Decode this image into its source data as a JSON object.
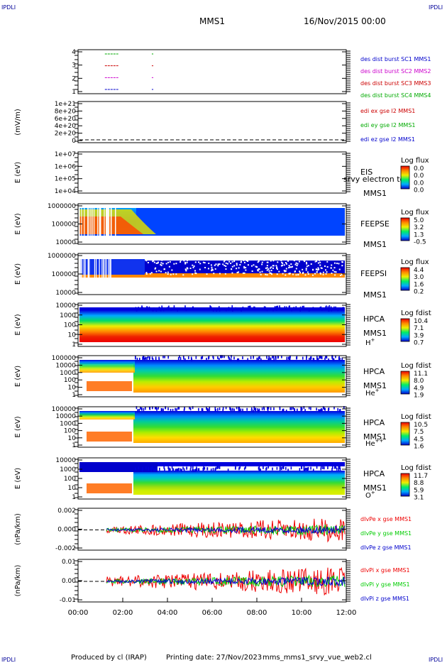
{
  "header": {
    "corner_label": "IPDLI",
    "spacecraft": "MMS1",
    "date": "16/Nov/2015 00:00"
  },
  "footer": {
    "produced_by": "Produced by cl (IRAP)",
    "printing_date": "Printing date: 27/Nov/2023",
    "filename": "mms_mms1_srvy_vue_web2.cl"
  },
  "chart_data": [
    {
      "id": "burst",
      "type": "line",
      "ylabel": "",
      "ytick_labels": [
        "4",
        "3",
        "2",
        "1"
      ],
      "series": [
        {
          "name": "des dist burst SC1 MMS1",
          "color": "#0000cc",
          "level": 1,
          "segments": [
            [
              "01:12",
              "01:48"
            ],
            [
              "03:18",
              "03:22"
            ]
          ]
        },
        {
          "name": "des dist burst SC2 MMS2",
          "color": "#cc00cc",
          "level": 2,
          "segments": [
            [
              "01:12",
              "01:48"
            ],
            [
              "03:18",
              "03:22"
            ]
          ]
        },
        {
          "name": "des dist burst SC3 MMS3",
          "color": "#cc0000",
          "level": 3,
          "segments": [
            [
              "01:12",
              "01:48"
            ],
            [
              "03:18",
              "03:22"
            ]
          ]
        },
        {
          "name": "des dist burst SC4 MMS4",
          "color": "#00aa00",
          "level": 4,
          "segments": [
            [
              "01:12",
              "01:48"
            ],
            [
              "03:18",
              "03:22"
            ]
          ]
        }
      ]
    },
    {
      "id": "edi",
      "type": "line",
      "ylabel": "(mV/m)",
      "ytick_labels": [
        "1e+21",
        "8e+20",
        "6e+20",
        "4e+20",
        "2e+20",
        "0"
      ],
      "series": [
        {
          "name": "edi ex gse l2 MMS1",
          "color": "#cc0000"
        },
        {
          "name": "edi ey gse l2 MMS1",
          "color": "#00aa00"
        },
        {
          "name": "edi ez gse l2 MMS1",
          "color": "#0000cc"
        }
      ]
    },
    {
      "id": "eis",
      "type": "heatmap",
      "ylabel": "E (eV)",
      "ytick_labels": [
        "1e+07",
        "1e+06",
        "1e+05",
        "1e+04"
      ],
      "instrument": "EIS",
      "overlay_label": "srvy electron to",
      "spacecraft": "MMS1",
      "colorbar_title": "Log flux",
      "colorbar_ticks": [
        "0.0",
        "0.0",
        "0.0",
        "0.0"
      ]
    },
    {
      "id": "feepse",
      "type": "heatmap",
      "ylabel": "E (eV)",
      "ytick_labels": [
        "1000000",
        "100000",
        "10000"
      ],
      "instrument": "FEEPSE",
      "spacecraft": "MMS1",
      "colorbar_title": "Log flux",
      "colorbar_ticks": [
        "5.0",
        "3.2",
        "1.3",
        "-0.5"
      ]
    },
    {
      "id": "feepsi",
      "type": "heatmap",
      "ylabel": "E (eV)",
      "ytick_labels": [
        "1000000",
        "100000",
        "10000"
      ],
      "instrument": "FEEPSI",
      "spacecraft": "MMS1",
      "colorbar_title": "Log flux",
      "colorbar_ticks": [
        "4.4",
        "3.0",
        "1.6",
        "0.2"
      ]
    },
    {
      "id": "hpca_h",
      "type": "heatmap",
      "ylabel": "E (eV)",
      "ytick_labels": [
        "10000",
        "1000",
        "100",
        "10",
        "1"
      ],
      "instrument": "HPCA",
      "spacecraft": "MMS1",
      "species": "H",
      "species_sup": "+",
      "colorbar_title": "Log fdist",
      "colorbar_ticks": [
        "10.4",
        "7.1",
        "3.9",
        "0.7"
      ]
    },
    {
      "id": "hpca_he",
      "type": "heatmap",
      "ylabel": "E (eV)",
      "ytick_labels": [
        "100000",
        "10000",
        "1000",
        "100",
        "10",
        "1"
      ],
      "instrument": "HPCA",
      "spacecraft": "MMS1",
      "species": "He",
      "species_sup": "+",
      "colorbar_title": "Log fdist",
      "colorbar_ticks": [
        "11.1",
        "8.0",
        "4.9",
        "1.9"
      ]
    },
    {
      "id": "hpca_hepp",
      "type": "heatmap",
      "ylabel": "E (eV)",
      "ytick_labels": [
        "100000",
        "10000",
        "1000",
        "100",
        "10",
        "1"
      ],
      "instrument": "HPCA",
      "spacecraft": "MMS1",
      "species": "He",
      "species_sup": "++",
      "colorbar_title": "Log fdist",
      "colorbar_ticks": [
        "10.5",
        "7.5",
        "4.5",
        "1.6"
      ]
    },
    {
      "id": "hpca_o",
      "type": "heatmap",
      "ylabel": "E (eV)",
      "ytick_labels": [
        "10000",
        "1000",
        "100",
        "10",
        "1"
      ],
      "instrument": "HPCA",
      "spacecraft": "MMS1",
      "species": "O",
      "species_sup": "+",
      "colorbar_title": "Log fdist",
      "colorbar_ticks": [
        "11.7",
        "8.8",
        "5.9",
        "3.1"
      ]
    },
    {
      "id": "divpe",
      "type": "line",
      "ylabel": "(nPa/km)",
      "ytick_labels": [
        "0.002",
        "0.000",
        "-0.002"
      ],
      "series": [
        {
          "name": "dIvPe x gse MMS1",
          "color": "#ee0000"
        },
        {
          "name": "dIvPe y gse MMS1",
          "color": "#00cc00"
        },
        {
          "name": "dIvPe z gse MMS1",
          "color": "#0000cc"
        }
      ]
    },
    {
      "id": "divpi",
      "type": "line",
      "ylabel": "(nPa/km)",
      "ytick_labels": [
        "0.01",
        "0.00",
        "-0.01"
      ],
      "series": [
        {
          "name": "dIvPi x gse MMS1",
          "color": "#ee0000"
        },
        {
          "name": "dIvPi y gse MMS1",
          "color": "#00cc00"
        },
        {
          "name": "dIvPi z gse MMS1",
          "color": "#0000cc"
        }
      ]
    }
  ],
  "xaxis": {
    "tick_labels": [
      "00:00",
      "02:00",
      "04:00",
      "06:00",
      "08:00",
      "10:00",
      "12:00"
    ]
  }
}
